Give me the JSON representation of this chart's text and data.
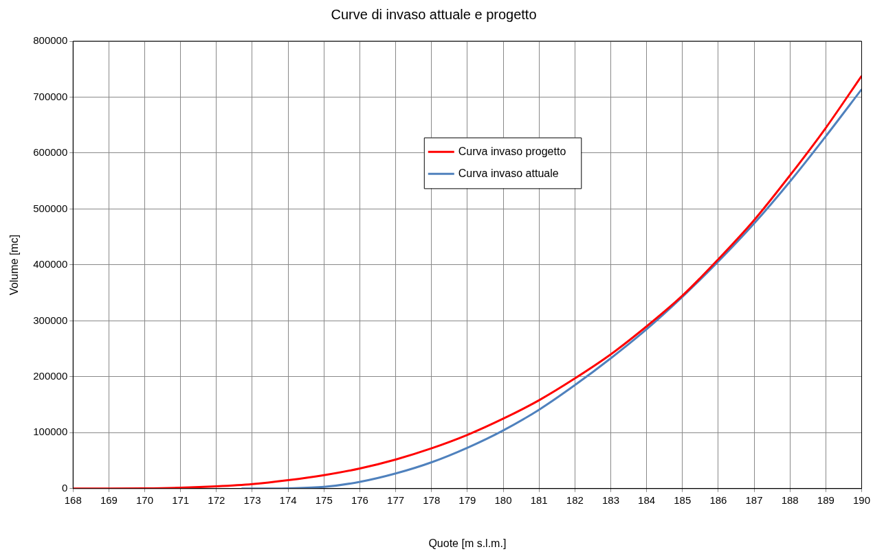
{
  "chart_data": {
    "type": "line",
    "title": "Curve di invaso attuale e progetto",
    "xlabel": "Quote [m s.l.m.]",
    "ylabel": "Volume [mc]",
    "xlim": [
      168,
      190
    ],
    "xticks": [
      168,
      169,
      170,
      171,
      172,
      173,
      174,
      175,
      176,
      177,
      178,
      179,
      180,
      181,
      182,
      183,
      184,
      185,
      186,
      187,
      188,
      189,
      190
    ],
    "ylim": [
      0,
      800000
    ],
    "yticks": [
      0,
      100000,
      200000,
      300000,
      400000,
      500000,
      600000,
      700000,
      800000
    ],
    "grid": true,
    "legend": "top",
    "marker": "none",
    "line_style": "solid",
    "series": [
      {
        "name": "Curva invaso progetto",
        "color": "#ff0000",
        "x": [
          168,
          169,
          170,
          171,
          172,
          173,
          174,
          175,
          176,
          177,
          178,
          179,
          180,
          181,
          182,
          183,
          184,
          185,
          186,
          187,
          188,
          189,
          190
        ],
        "values": [
          0,
          0,
          300,
          1500,
          4000,
          8000,
          15000,
          24000,
          36000,
          52000,
          72000,
          96000,
          125000,
          158000,
          197000,
          240000,
          290000,
          345000,
          410000,
          480000,
          560000,
          645000,
          738000
        ]
      },
      {
        "name": "Curva invaso attuale",
        "color": "#4f81bd",
        "x": [
          172.7,
          173,
          174,
          175,
          176,
          177,
          178,
          179,
          180,
          181,
          182,
          183,
          184,
          185,
          186,
          187,
          188,
          189,
          190
        ],
        "values": [
          0,
          0,
          500,
          3000,
          12000,
          27000,
          47000,
          73000,
          104000,
          141000,
          185000,
          233000,
          285000,
          343000,
          406000,
          474000,
          549000,
          630000,
          714000
        ]
      }
    ]
  }
}
